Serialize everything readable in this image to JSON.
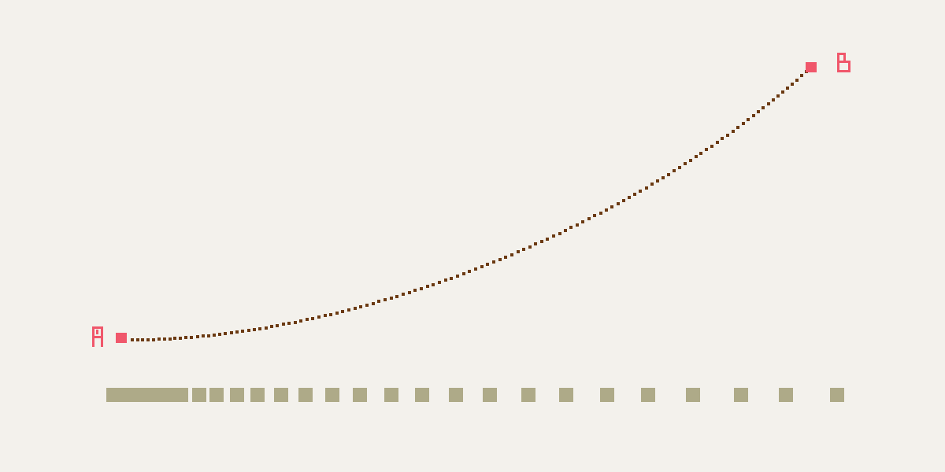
{
  "colors": {
    "background": "#f3f1ec",
    "endpoint": "#f0576b",
    "path_dots": "#6b3a12",
    "ticks": "#aeaa88"
  },
  "endpoints": {
    "start_label": "A",
    "end_label": "B"
  },
  "path": {
    "dot_count": 120
  },
  "ruler": {
    "tick_count": 24
  }
}
